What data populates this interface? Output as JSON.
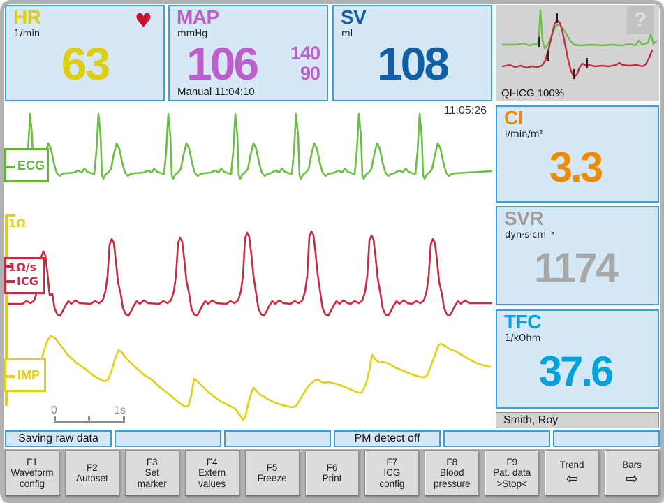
{
  "vitals_top": {
    "hr": {
      "label": "HR",
      "unit": "1/min",
      "value": "63"
    },
    "map": {
      "label": "MAP",
      "unit": "mmHg",
      "value": "106",
      "sys": "140",
      "dia": "90",
      "note": "Manual 11:04:10"
    },
    "sv": {
      "label": "SV",
      "unit": "ml",
      "value": "108"
    }
  },
  "preview": {
    "quality_label": "QI-ICG 100%",
    "help_label": "?"
  },
  "waveform_area": {
    "timestamp": "11:05:26",
    "ecg_label": "ECG",
    "icg_scale_label": "1Ω/s",
    "icg_label": "ICG",
    "imp_label": "IMP",
    "impedance_scale_label": "1Ω",
    "ruler_start": "0",
    "ruler_end": "1s"
  },
  "vitals_right": {
    "ci": {
      "label": "CI",
      "unit": "l/min/m²",
      "value": "3.3"
    },
    "svr": {
      "label": "SVR",
      "unit": "dyn·s·cm⁻⁵",
      "value": "1174"
    },
    "tfc": {
      "label": "TFC",
      "unit": "1/kOhm",
      "value": "37.6"
    }
  },
  "patient": {
    "name": "Smith, Roy"
  },
  "status_bar": [
    "Saving raw data",
    "",
    "",
    "PM detect off",
    "",
    ""
  ],
  "function_keys": [
    {
      "key": "F1",
      "line1": "Waveform",
      "line2": "config"
    },
    {
      "key": "F2",
      "line1": "Autoset"
    },
    {
      "key": "F3",
      "line1": "Set",
      "line2": "marker"
    },
    {
      "key": "F4",
      "line1": "Extern",
      "line2": "values"
    },
    {
      "key": "F5",
      "line1": "Freeze"
    },
    {
      "key": "F6",
      "line1": "Print"
    },
    {
      "key": "F7",
      "line1": "ICG",
      "line2": "config"
    },
    {
      "key": "F8",
      "line1": "Blood",
      "line2": "pressure"
    },
    {
      "key": "F9",
      "line1": "Pat. data",
      "line2": ">Stop<"
    },
    {
      "key": "Trend",
      "arrow": "⇦"
    },
    {
      "key": "Bars",
      "arrow": "⇨"
    }
  ],
  "colors": {
    "hr_yellow": "#ddcf10",
    "map_purple": "#bc5fcb",
    "sv_blue": "#1160a6",
    "ci_orange": "#ef8b00",
    "svr_gray": "#a8a8a8",
    "tfc_cyan": "#00a3d9",
    "ecg_green": "#6bbd45",
    "icg_red": "#c72c41",
    "imp_yellow": "#e3cf14",
    "heart_red": "#c41431",
    "tile_bg": "#d6e8f6",
    "tile_border": "#38a1da"
  }
}
